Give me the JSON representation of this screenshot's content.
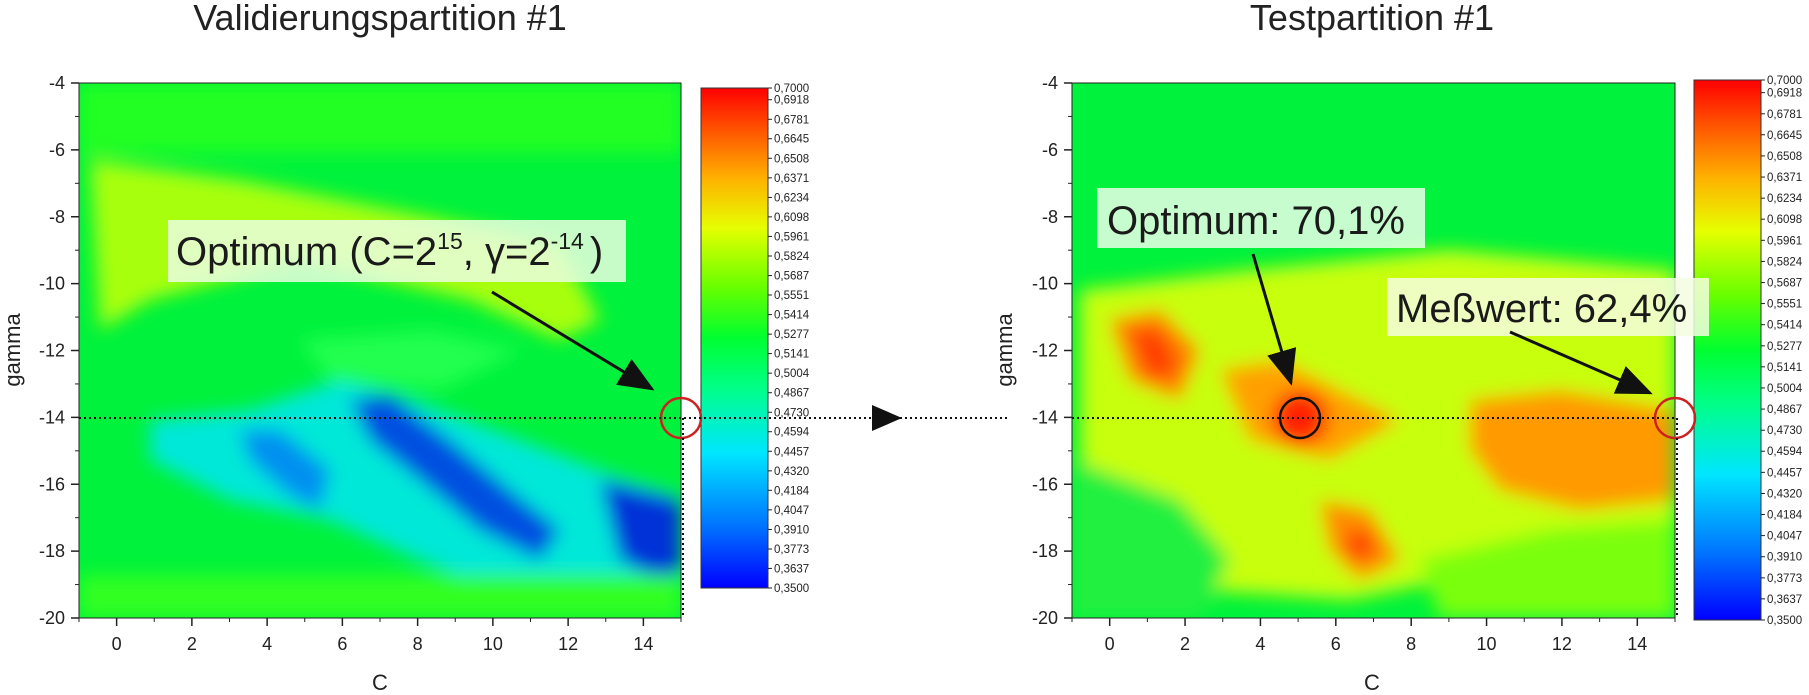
{
  "chart_data": [
    {
      "type": "heatmap",
      "title": "Validierungspartition #1",
      "xlabel": "C",
      "ylabel": "gamma",
      "xlim": [
        -1,
        15
      ],
      "ylim": [
        -20,
        -4
      ],
      "xticks": [
        "0",
        "2",
        "4",
        "6",
        "8",
        "10",
        "12",
        "14"
      ],
      "yticks": [
        "-4",
        "-6",
        "-8",
        "-10",
        "-12",
        "-14",
        "-16",
        "-18",
        "-20"
      ],
      "colorbar": {
        "min": 0.35,
        "max": 0.7,
        "labels": [
          "0,7000",
          "0,6918",
          "0,6781",
          "0,6645",
          "0,6508",
          "0,6371",
          "0,6234",
          "0,6098",
          "0,5961",
          "0,5824",
          "0,5687",
          "0,5551",
          "0,5414",
          "0,5277",
          "0,5141",
          "0,5004",
          "0,4867",
          "0,4730",
          "0,4594",
          "0,4457",
          "0,4320",
          "0,4184",
          "0,4047",
          "0,3910",
          "0,3773",
          "0,3637",
          "0,3500"
        ]
      },
      "annotation": {
        "text_before": "Optimum (C=2",
        "sup1": "15",
        "text_middle": ", γ=2",
        "sup2": "-14",
        "text_after": ")"
      },
      "marker": {
        "C": 15,
        "gamma": -14,
        "color": "#cc2222"
      }
    },
    {
      "type": "heatmap",
      "title": "Testpartition #1",
      "xlabel": "C",
      "ylabel": "gamma",
      "xlim": [
        -1,
        15
      ],
      "ylim": [
        -20,
        -4
      ],
      "xticks": [
        "0",
        "2",
        "4",
        "6",
        "8",
        "10",
        "12",
        "14"
      ],
      "yticks": [
        "-4",
        "-6",
        "-8",
        "-10",
        "-12",
        "-14",
        "-16",
        "-18",
        "-20"
      ],
      "colorbar": {
        "min": 0.35,
        "max": 0.7,
        "labels": [
          "0,7000",
          "0,6918",
          "0,6781",
          "0,6645",
          "0,6508",
          "0,6371",
          "0,6234",
          "0,6098",
          "0,5961",
          "0,5824",
          "0,5687",
          "0,5551",
          "0,5414",
          "0,5277",
          "0,5141",
          "0,5004",
          "0,4867",
          "0,4730",
          "0,4594",
          "0,4457",
          "0,4320",
          "0,4184",
          "0,4047",
          "0,3910",
          "0,3773",
          "0,3637",
          "0,3500"
        ]
      },
      "annotations": [
        {
          "text": "Optimum: 70,1%",
          "C": 5,
          "gamma": -14,
          "marker_color": "#111111"
        },
        {
          "text": "Meßwert: 62,4%",
          "C": 15,
          "gamma": -14,
          "marker_color": "#cc2222"
        }
      ]
    }
  ]
}
